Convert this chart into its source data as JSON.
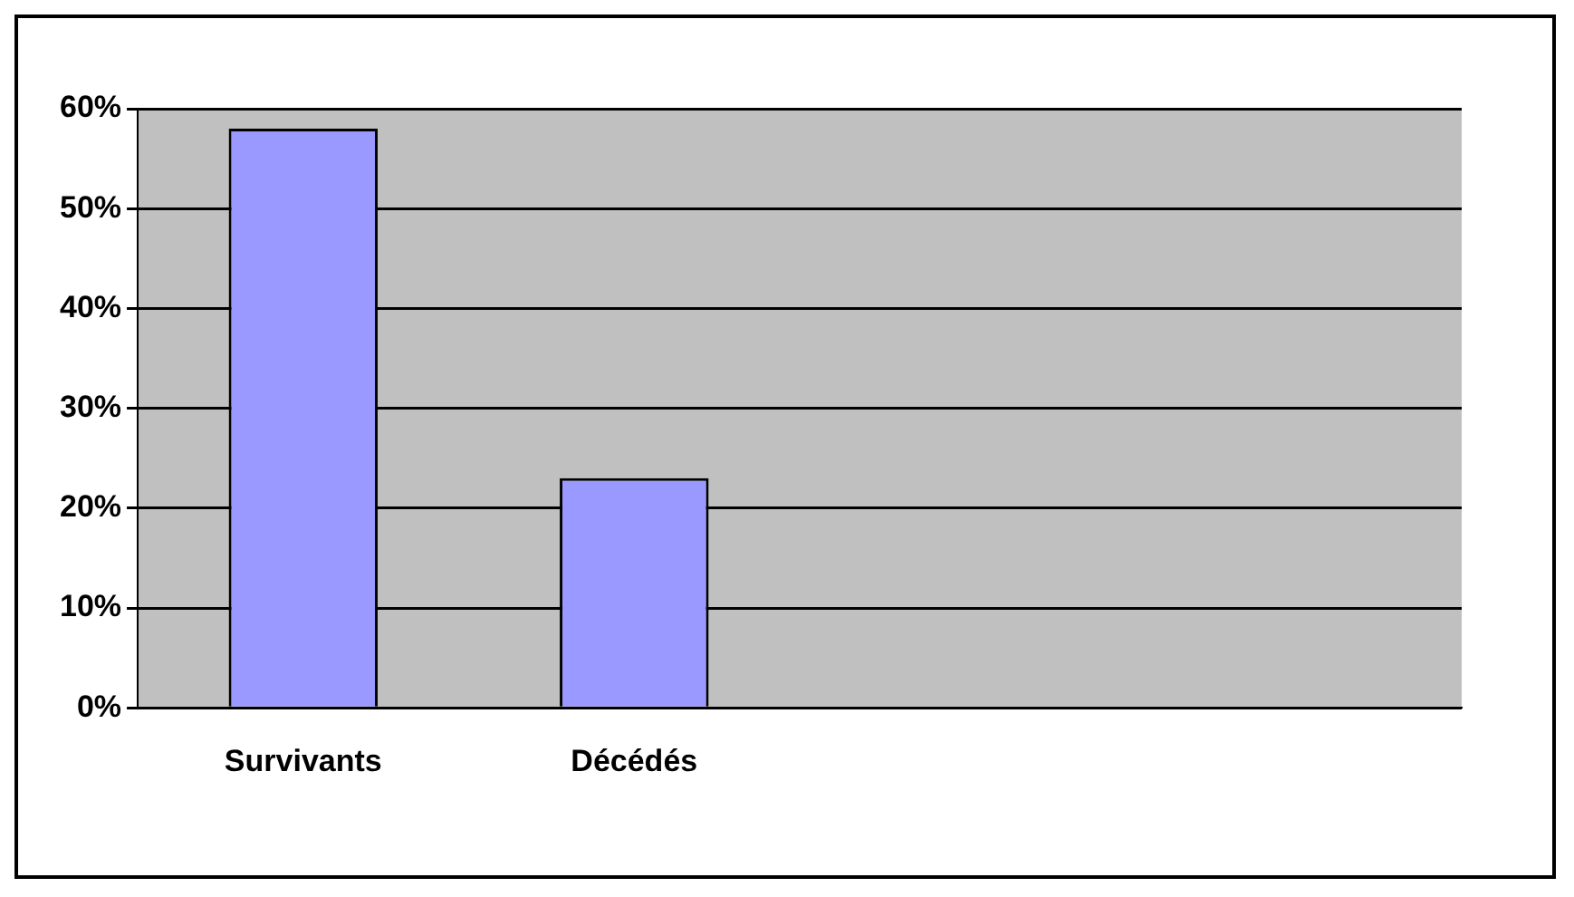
{
  "chart_data": {
    "type": "bar",
    "categories": [
      "Survivants",
      "Décédés",
      null,
      null
    ],
    "values": [
      58,
      23,
      null,
      null
    ],
    "color": "#9999ff",
    "ylim": [
      0,
      60
    ],
    "yticks": [
      {
        "value": 0,
        "label": "0%"
      },
      {
        "value": 10,
        "label": "10%"
      },
      {
        "value": 20,
        "label": "20%"
      },
      {
        "value": 30,
        "label": "30%"
      },
      {
        "value": 40,
        "label": "40%"
      },
      {
        "value": 50,
        "label": "50%"
      },
      {
        "value": 60,
        "label": "60%"
      }
    ],
    "grid": "y",
    "legend": false
  }
}
